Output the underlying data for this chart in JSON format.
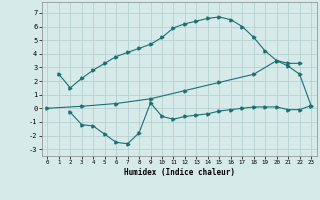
{
  "xlabel": "Humidex (Indice chaleur)",
  "ylabel": "",
  "bg_color": "#d6eaea",
  "grid_color": "#b0cccc",
  "line_color": "#1a7070",
  "xlim": [
    -0.5,
    23.5
  ],
  "ylim": [
    -3.5,
    7.8
  ],
  "xticks": [
    0,
    1,
    2,
    3,
    4,
    5,
    6,
    7,
    8,
    9,
    10,
    11,
    12,
    13,
    14,
    15,
    16,
    17,
    18,
    19,
    20,
    21,
    22,
    23
  ],
  "yticks": [
    -3,
    -2,
    -1,
    0,
    1,
    2,
    3,
    4,
    5,
    6,
    7
  ],
  "curve1_x": [
    1,
    2,
    3,
    4,
    5,
    6,
    7,
    8,
    9,
    10,
    11,
    12,
    13,
    14,
    15,
    16,
    17,
    18,
    19,
    20,
    21,
    22,
    23
  ],
  "curve1_y": [
    2.5,
    1.5,
    2.2,
    2.8,
    3.3,
    3.8,
    4.1,
    4.4,
    4.7,
    5.2,
    5.9,
    6.2,
    6.4,
    6.6,
    6.7,
    6.5,
    6.0,
    5.2,
    4.2,
    3.5,
    3.1,
    2.5,
    0.2
  ],
  "curve2_x": [
    0,
    3,
    6,
    9,
    12,
    15,
    18,
    20,
    21,
    22
  ],
  "curve2_y": [
    0.0,
    0.15,
    0.35,
    0.7,
    1.3,
    1.9,
    2.5,
    3.5,
    3.3,
    3.3
  ],
  "curve3_x": [
    2,
    3,
    4,
    5,
    6,
    7,
    8,
    9,
    10,
    11,
    12,
    13,
    14,
    15,
    16,
    17,
    18,
    19,
    20,
    21,
    22,
    23
  ],
  "curve3_y": [
    -0.3,
    -1.2,
    -1.3,
    -1.9,
    -2.5,
    -2.6,
    -1.8,
    0.4,
    -0.6,
    -0.8,
    -0.6,
    -0.5,
    -0.4,
    -0.2,
    -0.1,
    0.0,
    0.1,
    0.1,
    0.1,
    -0.1,
    -0.1,
    0.2
  ]
}
